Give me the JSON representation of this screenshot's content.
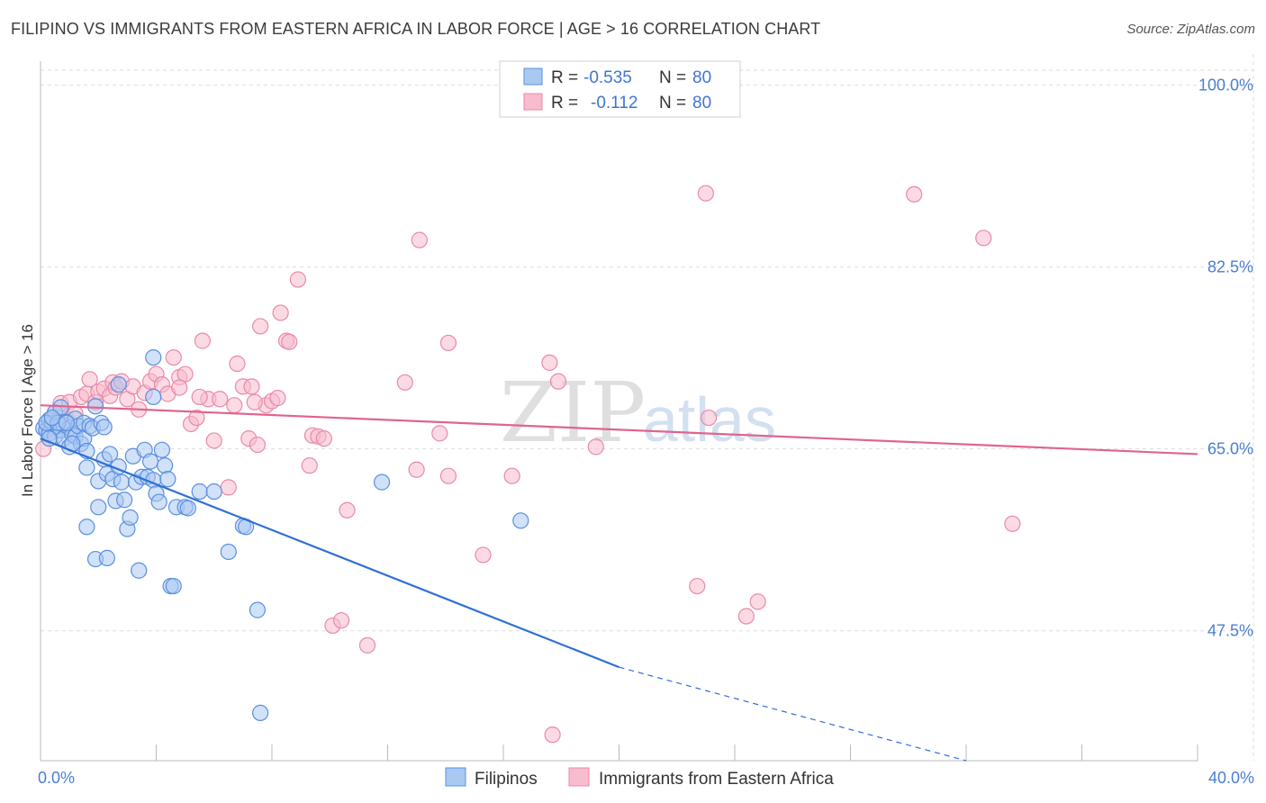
{
  "title": "FILIPINO VS IMMIGRANTS FROM EASTERN AFRICA IN LABOR FORCE | AGE > 16 CORRELATION CHART",
  "source": "Source: ZipAtlas.com",
  "watermark": {
    "part1": "ZIP",
    "part2": "atlas"
  },
  "colors": {
    "filipino_fill": "#a9c8f2",
    "filipino_stroke": "#5b8fe0",
    "filipino_line": "#2f6fd4",
    "eastafrica_fill": "#f7bccd",
    "eastafrica_stroke": "#e98aa7",
    "eastafrica_line": "#e0648c",
    "tick_label": "#4a7fd4",
    "grid": "#dddddd"
  },
  "legend_top": {
    "rows": [
      {
        "r_label": "R =",
        "r_value": "-0.535",
        "n_label": "N =",
        "n_value": "80"
      },
      {
        "r_label": "R =",
        "r_value": "-0.112",
        "n_label": "N =",
        "n_value": "80"
      }
    ]
  },
  "legend_bottom": [
    "Filipinos",
    "Immigrants from Eastern Africa"
  ],
  "chart_data": {
    "type": "scatter",
    "ylabel": "In Labor Force | Age > 16",
    "xlim": [
      0,
      40
    ],
    "ylim": [
      35,
      103
    ],
    "x_tick_labels": [
      {
        "value": 0,
        "label": "0.0%"
      },
      {
        "value": 40,
        "label": "40.0%"
      }
    ],
    "y_tick_labels": [
      {
        "value": 100,
        "label": "100.0%"
      },
      {
        "value": 82.5,
        "label": "82.5%"
      },
      {
        "value": 65,
        "label": "65.0%"
      },
      {
        "value": 47.5,
        "label": "47.5%"
      }
    ],
    "series": [
      {
        "name": "Filipinos",
        "r": -0.535,
        "n": 80,
        "trend": {
          "x1": 0,
          "y1": 66.0,
          "x2": 20,
          "y2": 44.0,
          "dash_to_x": 32,
          "dash_to_y": 35.0
        },
        "points": [
          [
            0.1,
            67.0
          ],
          [
            0.2,
            66.8
          ],
          [
            0.3,
            66.5
          ],
          [
            0.3,
            67.8
          ],
          [
            0.4,
            67.5
          ],
          [
            0.5,
            66.2
          ],
          [
            0.5,
            68.5
          ],
          [
            0.6,
            67.2
          ],
          [
            0.7,
            66.8
          ],
          [
            0.8,
            67.3
          ],
          [
            0.8,
            66.0
          ],
          [
            0.9,
            67.6
          ],
          [
            1.0,
            67.0
          ],
          [
            1.0,
            65.2
          ],
          [
            1.1,
            66.4
          ],
          [
            1.2,
            67.9
          ],
          [
            1.2,
            66.2
          ],
          [
            1.3,
            67.2
          ],
          [
            1.4,
            65.5
          ],
          [
            1.5,
            66.0
          ],
          [
            1.5,
            67.5
          ],
          [
            1.6,
            64.8
          ],
          [
            1.6,
            63.2
          ],
          [
            1.7,
            67.2
          ],
          [
            1.8,
            67.0
          ],
          [
            1.9,
            69.1
          ],
          [
            2.0,
            61.9
          ],
          [
            2.0,
            59.4
          ],
          [
            2.1,
            67.5
          ],
          [
            2.2,
            64.0
          ],
          [
            2.3,
            62.6
          ],
          [
            2.4,
            64.5
          ],
          [
            2.5,
            62.1
          ],
          [
            2.6,
            60.0
          ],
          [
            2.7,
            63.3
          ],
          [
            2.8,
            61.8
          ],
          [
            2.9,
            60.1
          ],
          [
            3.0,
            57.3
          ],
          [
            3.1,
            58.4
          ],
          [
            3.2,
            64.3
          ],
          [
            3.3,
            61.8
          ],
          [
            3.4,
            53.3
          ],
          [
            3.5,
            62.3
          ],
          [
            3.6,
            64.9
          ],
          [
            3.7,
            62.3
          ],
          [
            3.8,
            63.8
          ],
          [
            3.9,
            62.0
          ],
          [
            4.0,
            60.7
          ],
          [
            4.1,
            59.9
          ],
          [
            4.2,
            64.9
          ],
          [
            4.3,
            63.4
          ],
          [
            4.4,
            62.1
          ],
          [
            4.5,
            51.8
          ],
          [
            4.6,
            51.8
          ],
          [
            4.7,
            59.4
          ],
          [
            5.0,
            59.4
          ],
          [
            5.1,
            59.3
          ],
          [
            5.5,
            60.9
          ],
          [
            6.0,
            60.9
          ],
          [
            6.5,
            55.1
          ],
          [
            7.0,
            57.6
          ],
          [
            7.1,
            57.5
          ],
          [
            7.5,
            49.5
          ],
          [
            7.6,
            39.6
          ],
          [
            11.8,
            61.8
          ],
          [
            16.6,
            58.1
          ],
          [
            3.9,
            70.0
          ],
          [
            3.9,
            73.8
          ],
          [
            2.7,
            71.2
          ],
          [
            1.1,
            65.5
          ],
          [
            0.3,
            66.0
          ],
          [
            0.2,
            67.5
          ],
          [
            0.7,
            69.0
          ],
          [
            2.2,
            67.1
          ],
          [
            1.9,
            54.4
          ],
          [
            2.3,
            54.5
          ],
          [
            1.6,
            57.5
          ],
          [
            0.6,
            67.5
          ],
          [
            0.9,
            67.5
          ],
          [
            0.4,
            68.0
          ]
        ]
      },
      {
        "name": "Immigrants from Eastern Africa",
        "r": -0.112,
        "n": 80,
        "trend": {
          "x1": 0,
          "y1": 69.2,
          "x2": 40,
          "y2": 64.5
        },
        "points": [
          [
            0.1,
            65.0
          ],
          [
            0.3,
            67.0
          ],
          [
            0.5,
            68.5
          ],
          [
            0.7,
            69.4
          ],
          [
            0.9,
            67.9
          ],
          [
            1.0,
            69.5
          ],
          [
            1.2,
            68.4
          ],
          [
            1.4,
            70.0
          ],
          [
            1.6,
            70.3
          ],
          [
            1.7,
            71.7
          ],
          [
            1.9,
            69.5
          ],
          [
            2.0,
            70.5
          ],
          [
            2.2,
            70.8
          ],
          [
            2.4,
            70.1
          ],
          [
            2.5,
            71.4
          ],
          [
            2.6,
            70.9
          ],
          [
            2.8,
            71.5
          ],
          [
            3.0,
            69.8
          ],
          [
            3.2,
            71.0
          ],
          [
            3.4,
            68.8
          ],
          [
            3.6,
            70.4
          ],
          [
            3.8,
            71.5
          ],
          [
            4.0,
            72.2
          ],
          [
            4.2,
            71.2
          ],
          [
            4.4,
            70.3
          ],
          [
            4.6,
            73.8
          ],
          [
            4.8,
            71.9
          ],
          [
            5.0,
            72.2
          ],
          [
            5.2,
            67.4
          ],
          [
            5.4,
            68.0
          ],
          [
            5.6,
            75.4
          ],
          [
            5.8,
            69.8
          ],
          [
            6.0,
            65.8
          ],
          [
            6.2,
            69.8
          ],
          [
            6.5,
            61.3
          ],
          [
            6.7,
            69.2
          ],
          [
            6.8,
            73.2
          ],
          [
            7.0,
            71.0
          ],
          [
            7.2,
            66.0
          ],
          [
            7.3,
            71.0
          ],
          [
            7.5,
            65.4
          ],
          [
            7.6,
            76.8
          ],
          [
            7.8,
            69.2
          ],
          [
            8.0,
            69.6
          ],
          [
            8.2,
            69.9
          ],
          [
            8.3,
            78.1
          ],
          [
            8.5,
            75.4
          ],
          [
            8.6,
            75.3
          ],
          [
            8.9,
            81.3
          ],
          [
            9.3,
            63.4
          ],
          [
            9.4,
            66.3
          ],
          [
            9.6,
            66.2
          ],
          [
            9.8,
            66.0
          ],
          [
            10.1,
            48.0
          ],
          [
            10.4,
            48.5
          ],
          [
            10.6,
            59.1
          ],
          [
            11.3,
            46.1
          ],
          [
            12.6,
            71.4
          ],
          [
            13.0,
            63.0
          ],
          [
            13.1,
            85.1
          ],
          [
            13.8,
            66.5
          ],
          [
            14.1,
            62.4
          ],
          [
            14.1,
            75.2
          ],
          [
            15.3,
            54.8
          ],
          [
            16.3,
            62.4
          ],
          [
            17.6,
            73.3
          ],
          [
            17.9,
            71.5
          ],
          [
            17.7,
            37.5
          ],
          [
            19.2,
            65.2
          ],
          [
            22.7,
            51.8
          ],
          [
            23.1,
            68.0
          ],
          [
            23.0,
            89.6
          ],
          [
            24.4,
            48.9
          ],
          [
            24.8,
            50.3
          ],
          [
            30.2,
            89.5
          ],
          [
            32.6,
            85.3
          ],
          [
            33.6,
            57.8
          ],
          [
            7.4,
            69.5
          ],
          [
            5.5,
            70.0
          ],
          [
            4.8,
            70.9
          ]
        ]
      }
    ]
  }
}
